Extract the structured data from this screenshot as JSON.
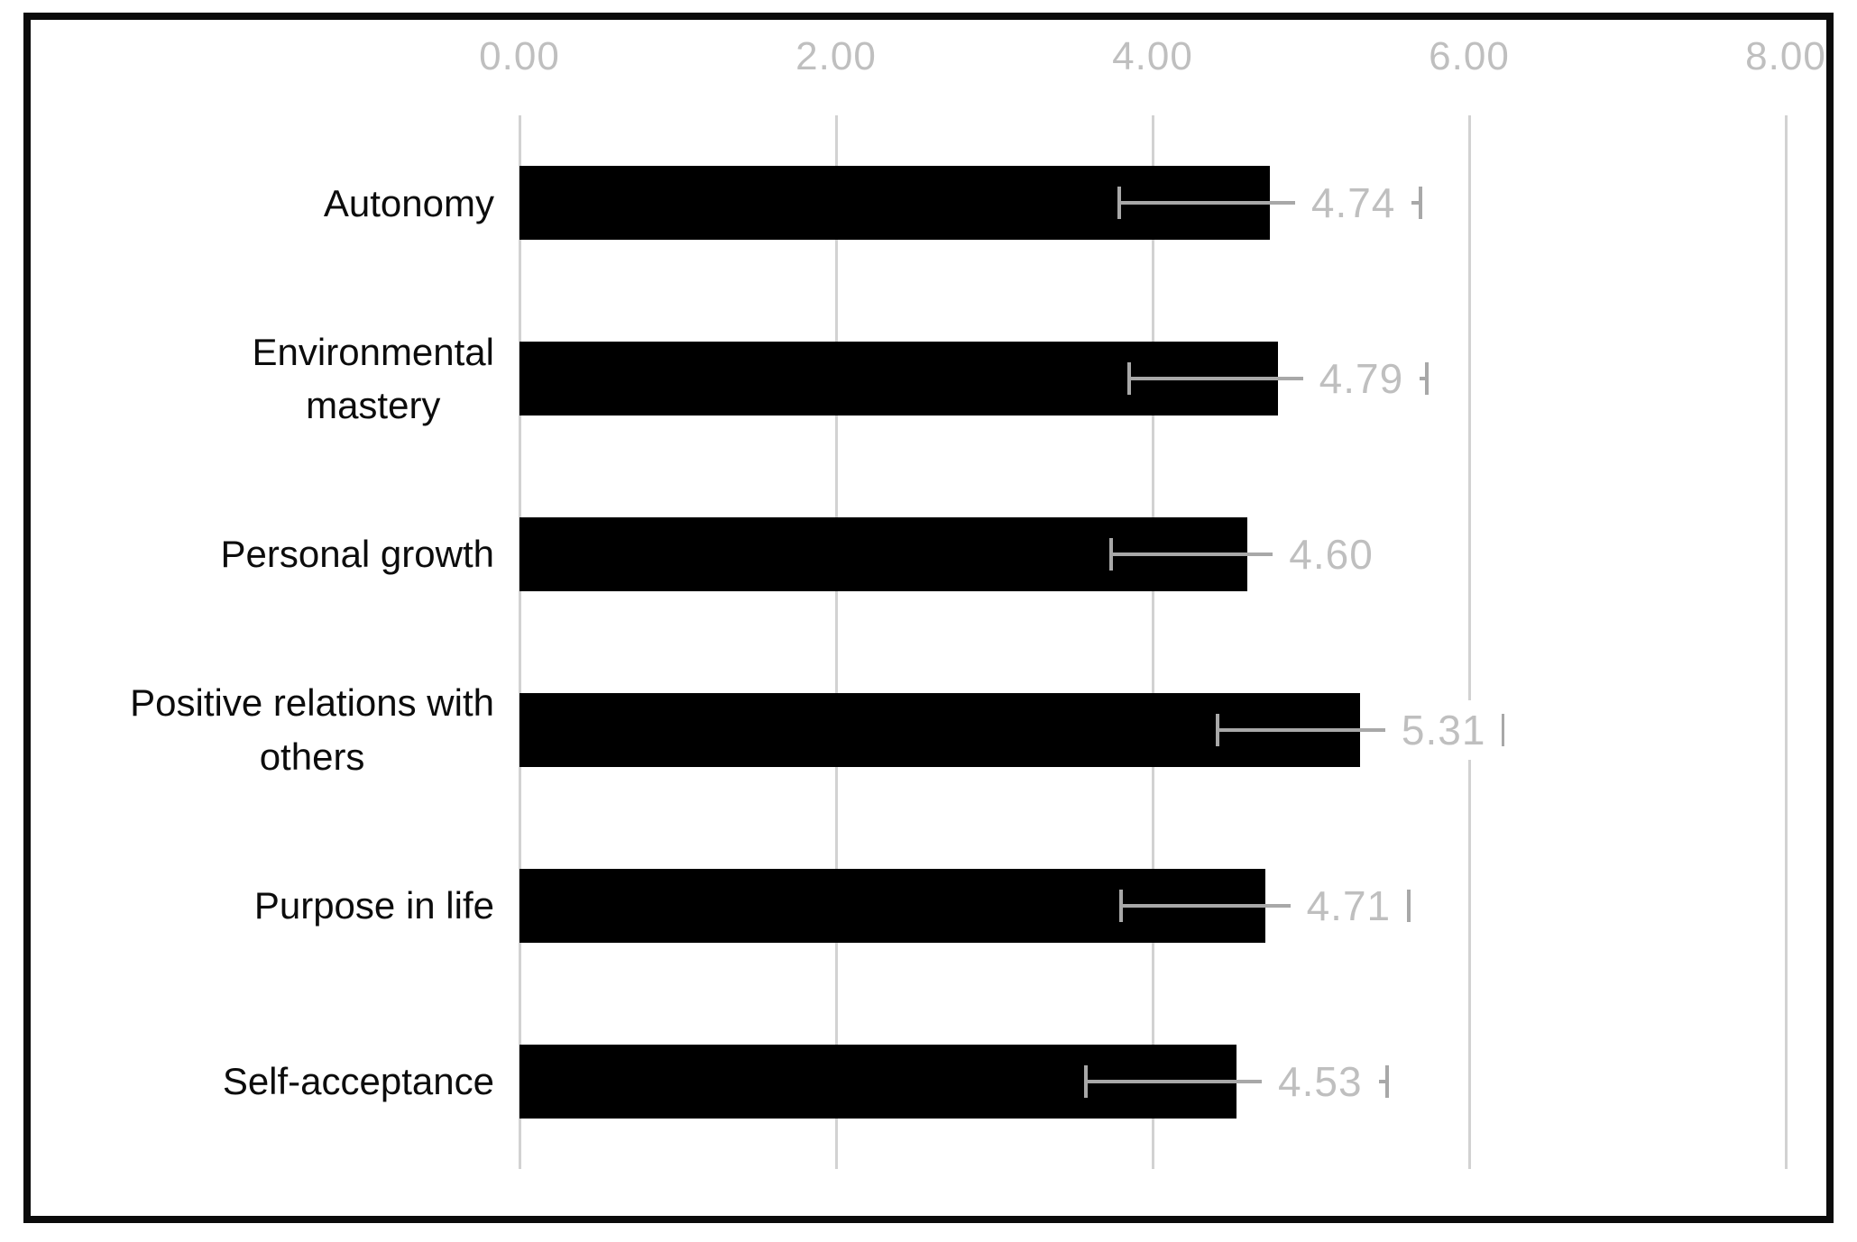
{
  "chart_data": {
    "type": "bar",
    "orientation": "horizontal",
    "title": "",
    "xlabel": "",
    "ylabel": "",
    "categories": [
      "Autonomy",
      "Environmental\nmastery",
      "Personal growth",
      "Positive relations with\nothers",
      "Purpose in life",
      "Self-acceptance"
    ],
    "values": [
      4.74,
      4.79,
      4.6,
      5.31,
      4.71,
      4.53
    ],
    "data_labels": [
      "4.74",
      "4.79",
      "4.60",
      "5.31",
      "4.71",
      "4.53"
    ],
    "errors": [
      0.95,
      0.94,
      0.86,
      0.9,
      0.91,
      0.95
    ],
    "error_bars": true,
    "xlim": [
      0,
      8
    ],
    "x_tick_values": [
      0,
      2,
      4,
      6,
      8
    ],
    "x_tick_labels": [
      "0.00",
      "2.00",
      "4.00",
      "6.00",
      "8.00"
    ],
    "axis_position": "top",
    "grid": true,
    "legend": false,
    "colors": {
      "bar": "#000000",
      "gridline": "#d2d2d2",
      "tick_label": "#bfbfbf",
      "data_label": "#bfbfbf",
      "error_bar": "#a8a8a8",
      "category_label": "#0c0c0c",
      "frame_border": "#0b0b0b",
      "background": "#ffffff"
    }
  }
}
